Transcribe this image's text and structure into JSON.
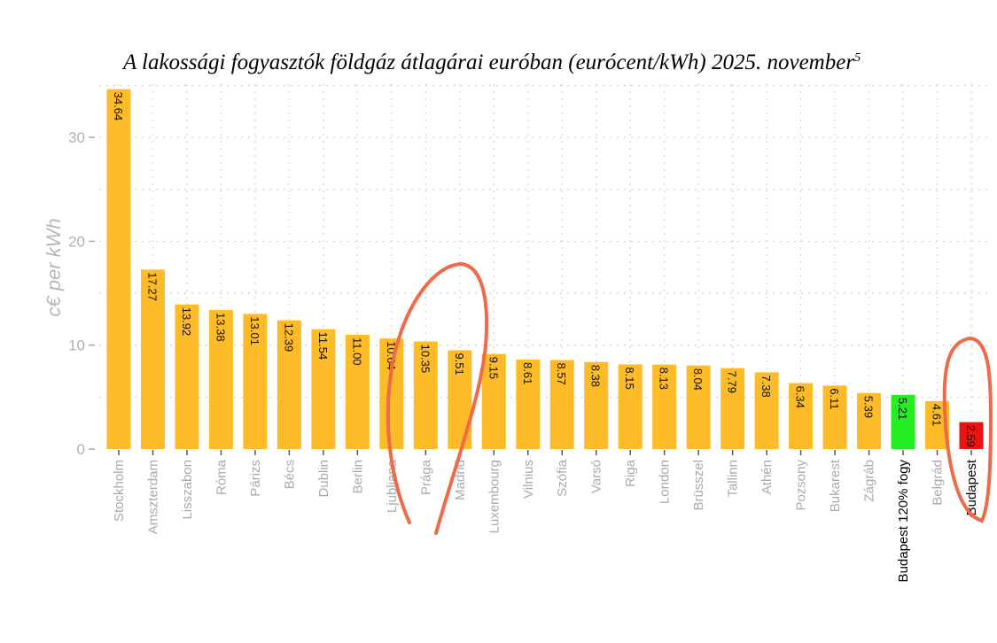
{
  "chart_data": {
    "type": "bar",
    "title": "A lakossági fogyasztók földgáz átlagárai euróban (eurócent/kWh) 2025. november",
    "title_footnote": "5",
    "xlabel": "",
    "ylabel": "c€ per kWh",
    "ylim": [
      0,
      35
    ],
    "yticks": [
      0,
      10,
      20,
      30
    ],
    "grid": true,
    "categories": [
      "Stockholm",
      "Amszterdam",
      "Lisszabon",
      "Róma",
      "Párizs",
      "Bécs",
      "Dublin",
      "Berlin",
      "Ljubljana",
      "Prága",
      "Madrid",
      "Luxembourg",
      "Vilnius",
      "Szófia",
      "Varsó",
      "Riga",
      "London",
      "Brüsszel",
      "Tallinn",
      "Athén",
      "Pozsony",
      "Bukarest",
      "Zágráb",
      "Budapest 120% fogy",
      "Belgrád",
      "Budapest"
    ],
    "values": [
      34.64,
      17.27,
      13.92,
      13.38,
      13.01,
      12.39,
      11.54,
      11.0,
      10.64,
      10.35,
      9.51,
      9.15,
      8.61,
      8.57,
      8.38,
      8.15,
      8.13,
      8.04,
      7.79,
      7.38,
      6.34,
      6.11,
      5.39,
      5.21,
      4.61,
      2.59
    ],
    "value_labels": [
      "34.64",
      "17.27",
      "13.92",
      "13.38",
      "13.01",
      "12.39",
      "11.54",
      "11.00",
      "10.64",
      "10.35",
      "9.51",
      "9.15",
      "8.61",
      "8.57",
      "8.38",
      "8.15",
      "8.13",
      "8.04",
      "7.79",
      "7.38",
      "6.34",
      "6.11",
      "5.39",
      "5.21",
      "4.61",
      "2.59"
    ],
    "highlight": {
      "Budapest 120% fogy": "#22ee22",
      "Budapest": "#e81414"
    },
    "colors": {
      "bar": "#fdbb27",
      "annotation": "#ee6a4a",
      "category_label": "#aaaaaa",
      "highlight_label": "#000000"
    }
  }
}
